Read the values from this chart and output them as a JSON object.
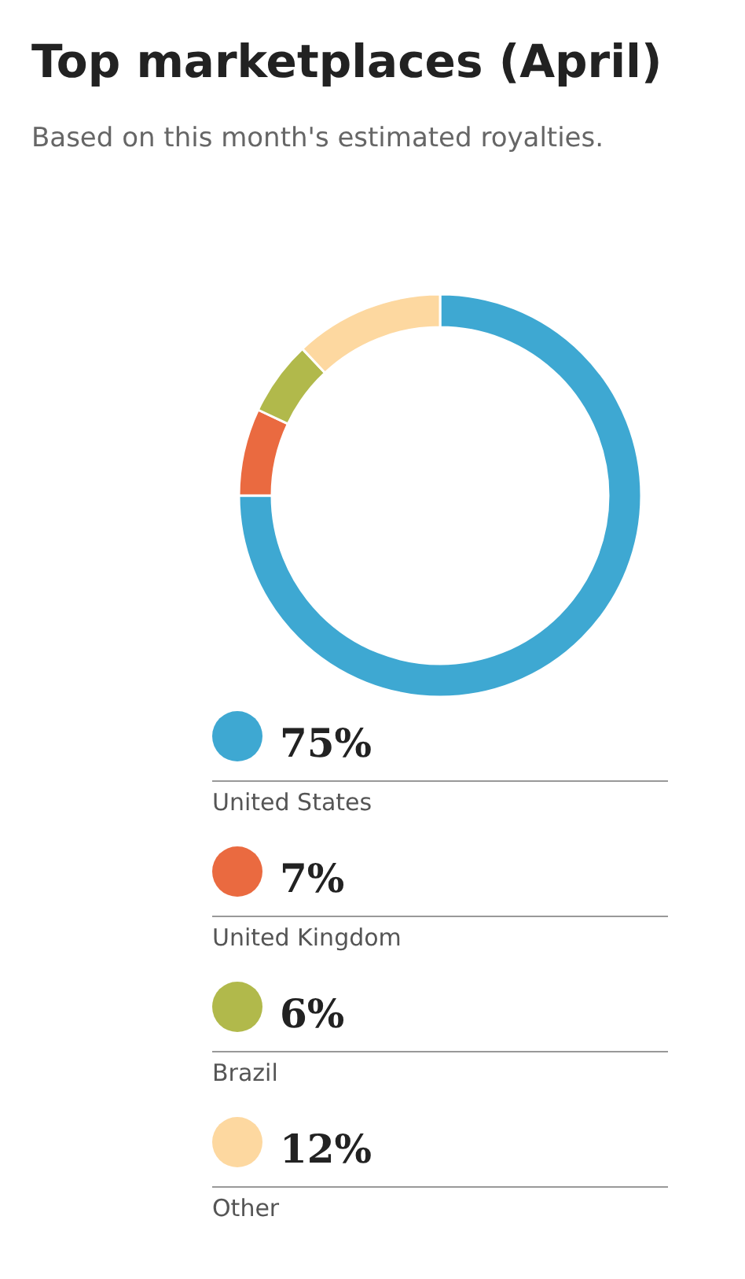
{
  "chart_data": {
    "type": "donut",
    "title": "Top marketplaces (April)",
    "subtitle": "Based on this month's estimated royalties.",
    "categories": [
      "United States",
      "United Kingdom",
      "Brazil",
      "Other"
    ],
    "values": [
      75,
      7,
      6,
      12
    ],
    "colors": [
      "#3ea8d2",
      "#ea6a40",
      "#b1b94b",
      "#fdd8a0"
    ],
    "value_labels": [
      "75%",
      "7%",
      "6%",
      "12%"
    ],
    "legend": "bottom"
  }
}
